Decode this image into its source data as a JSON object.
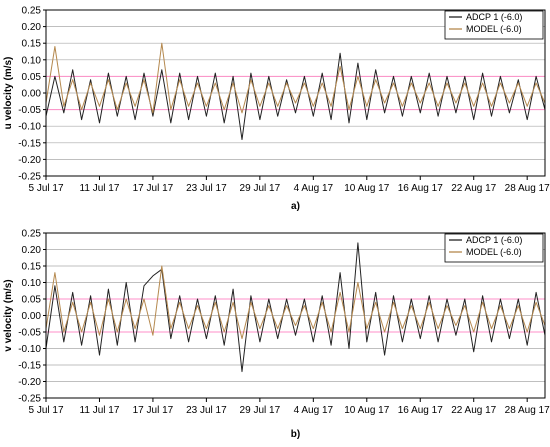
{
  "colors": {
    "adcp": "#222222",
    "model": "#b5894f",
    "grid": "#aaaaaa",
    "pink_band": "#ff8fc8",
    "axis": "#000000"
  },
  "chart_data": [
    {
      "type": "line",
      "panel_label": "a)",
      "ylabel": "u velocity (m/s)",
      "xlabel": "",
      "ylim": [
        -0.25,
        0.25
      ],
      "ytick_step": 0.05,
      "y_ticks": [
        "0.25",
        "0.20",
        "0.15",
        "0.10",
        "0.05",
        "0.00",
        "-0.05",
        "-0.10",
        "-0.15",
        "-0.20",
        "-0.25"
      ],
      "x_range": [
        "2017-07-05",
        "2017-08-30"
      ],
      "x_ticks": [
        "5 Jul 17",
        "11 Jul 17",
        "17 Jul 17",
        "23 Jul 17",
        "29 Jul 17",
        "4 Aug 17",
        "10 Aug 17",
        "16 Aug 17",
        "22 Aug 17",
        "28 Aug 17"
      ],
      "grid": "horizontal",
      "band": [
        -0.05,
        0.05
      ],
      "legend_position": "top-right",
      "legend": [
        "ADCP 1 (-6.0)",
        "MODEL (-6.0)"
      ],
      "series": [
        {
          "name": "ADCP 1 (-6.0)",
          "x": [
            "2017-07-05",
            "2017-07-06",
            "2017-07-07",
            "2017-07-08",
            "2017-07-09",
            "2017-07-10",
            "2017-07-11",
            "2017-07-12",
            "2017-07-13",
            "2017-07-14",
            "2017-07-15",
            "2017-07-16",
            "2017-07-17",
            "2017-07-18",
            "2017-07-19",
            "2017-07-20",
            "2017-07-21",
            "2017-07-22",
            "2017-07-23",
            "2017-07-24",
            "2017-07-25",
            "2017-07-26",
            "2017-07-27",
            "2017-07-28",
            "2017-07-29",
            "2017-07-30",
            "2017-07-31",
            "2017-08-01",
            "2017-08-02",
            "2017-08-03",
            "2017-08-04",
            "2017-08-05",
            "2017-08-06",
            "2017-08-07",
            "2017-08-08",
            "2017-08-09",
            "2017-08-10",
            "2017-08-11",
            "2017-08-12",
            "2017-08-13",
            "2017-08-14",
            "2017-08-15",
            "2017-08-16",
            "2017-08-17",
            "2017-08-18",
            "2017-08-19",
            "2017-08-20",
            "2017-08-21",
            "2017-08-22",
            "2017-08-23",
            "2017-08-24",
            "2017-08-25",
            "2017-08-26",
            "2017-08-27",
            "2017-08-28",
            "2017-08-29",
            "2017-08-30"
          ],
          "values": [
            -0.07,
            0.05,
            -0.06,
            0.07,
            -0.08,
            0.04,
            -0.09,
            0.06,
            -0.07,
            0.05,
            -0.08,
            0.06,
            -0.07,
            0.07,
            -0.09,
            0.06,
            -0.08,
            0.05,
            -0.07,
            0.06,
            -0.09,
            0.05,
            -0.14,
            0.06,
            -0.08,
            0.05,
            -0.07,
            0.04,
            -0.06,
            0.05,
            -0.07,
            0.06,
            -0.08,
            0.12,
            -0.09,
            0.09,
            -0.08,
            0.07,
            -0.06,
            0.05,
            -0.07,
            0.05,
            -0.06,
            0.06,
            -0.07,
            0.05,
            -0.06,
            0.05,
            -0.08,
            0.06,
            -0.07,
            0.05,
            -0.06,
            0.04,
            -0.08,
            0.05,
            -0.05
          ]
        },
        {
          "name": "MODEL (-6.0)",
          "x": [
            "2017-07-05",
            "2017-07-06",
            "2017-07-07",
            "2017-07-08",
            "2017-07-09",
            "2017-07-10",
            "2017-07-11",
            "2017-07-12",
            "2017-07-13",
            "2017-07-14",
            "2017-07-15",
            "2017-07-16",
            "2017-07-17",
            "2017-07-18",
            "2017-07-19",
            "2017-07-20",
            "2017-07-21",
            "2017-07-22",
            "2017-07-23",
            "2017-07-24",
            "2017-07-25",
            "2017-07-26",
            "2017-07-27",
            "2017-07-28",
            "2017-07-29",
            "2017-07-30",
            "2017-07-31",
            "2017-08-01",
            "2017-08-02",
            "2017-08-03",
            "2017-08-04",
            "2017-08-05",
            "2017-08-06",
            "2017-08-07",
            "2017-08-08",
            "2017-08-09",
            "2017-08-10",
            "2017-08-11",
            "2017-08-12",
            "2017-08-13",
            "2017-08-14",
            "2017-08-15",
            "2017-08-16",
            "2017-08-17",
            "2017-08-18",
            "2017-08-19",
            "2017-08-20",
            "2017-08-21",
            "2017-08-22",
            "2017-08-23",
            "2017-08-24",
            "2017-08-25",
            "2017-08-26",
            "2017-08-27",
            "2017-08-28",
            "2017-08-29",
            "2017-08-30"
          ],
          "values": [
            -0.03,
            0.14,
            -0.04,
            0.04,
            -0.05,
            0.03,
            -0.04,
            0.04,
            -0.05,
            0.03,
            -0.04,
            0.04,
            -0.06,
            0.15,
            -0.05,
            0.04,
            -0.04,
            0.03,
            -0.04,
            0.03,
            -0.05,
            0.03,
            -0.06,
            0.04,
            -0.04,
            0.03,
            -0.04,
            0.03,
            -0.03,
            0.03,
            -0.04,
            0.03,
            -0.04,
            0.08,
            -0.05,
            0.05,
            -0.04,
            0.04,
            -0.03,
            0.03,
            -0.04,
            0.03,
            -0.03,
            0.03,
            -0.04,
            0.03,
            -0.03,
            0.03,
            -0.04,
            0.03,
            -0.04,
            0.03,
            -0.03,
            0.03,
            -0.04,
            0.03,
            -0.03
          ]
        }
      ]
    },
    {
      "type": "line",
      "panel_label": "b)",
      "ylabel": "v velocity (m/s)",
      "xlabel": "",
      "ylim": [
        -0.25,
        0.25
      ],
      "ytick_step": 0.05,
      "y_ticks": [
        "0.25",
        "0.20",
        "0.15",
        "0.10",
        "0.05",
        "0.00",
        "-0.05",
        "-0.10",
        "-0.15",
        "-0.20",
        "-0.25"
      ],
      "x_range": [
        "2017-07-05",
        "2017-08-30"
      ],
      "x_ticks": [
        "5 Jul 17",
        "11 Jul 17",
        "17 Jul 17",
        "23 Jul 17",
        "29 Jul 17",
        "4 Aug 17",
        "10 Aug 17",
        "16 Aug 17",
        "22 Aug 17",
        "28 Aug 17"
      ],
      "grid": "horizontal",
      "band": [
        -0.05,
        0.05
      ],
      "legend_position": "top-right",
      "legend": [
        "ADCP 1 (-6.0)",
        "MODEL (-6.0)"
      ],
      "series": [
        {
          "name": "ADCP 1 (-6.0)",
          "x": [
            "2017-07-05",
            "2017-07-06",
            "2017-07-07",
            "2017-07-08",
            "2017-07-09",
            "2017-07-10",
            "2017-07-11",
            "2017-07-12",
            "2017-07-13",
            "2017-07-14",
            "2017-07-15",
            "2017-07-16",
            "2017-07-17",
            "2017-07-18",
            "2017-07-19",
            "2017-07-20",
            "2017-07-21",
            "2017-07-22",
            "2017-07-23",
            "2017-07-24",
            "2017-07-25",
            "2017-07-26",
            "2017-07-27",
            "2017-07-28",
            "2017-07-29",
            "2017-07-30",
            "2017-07-31",
            "2017-08-01",
            "2017-08-02",
            "2017-08-03",
            "2017-08-04",
            "2017-08-05",
            "2017-08-06",
            "2017-08-07",
            "2017-08-08",
            "2017-08-09",
            "2017-08-10",
            "2017-08-11",
            "2017-08-12",
            "2017-08-13",
            "2017-08-14",
            "2017-08-15",
            "2017-08-16",
            "2017-08-17",
            "2017-08-18",
            "2017-08-19",
            "2017-08-20",
            "2017-08-21",
            "2017-08-22",
            "2017-08-23",
            "2017-08-24",
            "2017-08-25",
            "2017-08-26",
            "2017-08-27",
            "2017-08-28",
            "2017-08-29",
            "2017-08-30"
          ],
          "values": [
            -0.1,
            0.09,
            -0.08,
            0.07,
            -0.09,
            0.06,
            -0.12,
            0.08,
            -0.09,
            0.1,
            -0.08,
            0.09,
            0.12,
            0.14,
            -0.07,
            0.06,
            -0.08,
            0.05,
            -0.07,
            0.06,
            -0.09,
            0.08,
            -0.17,
            0.06,
            -0.08,
            0.05,
            -0.07,
            0.05,
            -0.06,
            0.05,
            -0.08,
            0.06,
            -0.09,
            0.13,
            -0.1,
            0.22,
            -0.08,
            0.07,
            -0.12,
            0.06,
            -0.08,
            0.05,
            -0.07,
            0.06,
            -0.08,
            0.05,
            -0.06,
            0.05,
            -0.11,
            0.06,
            -0.08,
            0.05,
            -0.07,
            0.05,
            -0.09,
            0.07,
            -0.06
          ]
        },
        {
          "name": "MODEL (-6.0)",
          "x": [
            "2017-07-05",
            "2017-07-06",
            "2017-07-07",
            "2017-07-08",
            "2017-07-09",
            "2017-07-10",
            "2017-07-11",
            "2017-07-12",
            "2017-07-13",
            "2017-07-14",
            "2017-07-15",
            "2017-07-16",
            "2017-07-17",
            "2017-07-18",
            "2017-07-19",
            "2017-07-20",
            "2017-07-21",
            "2017-07-22",
            "2017-07-23",
            "2017-07-24",
            "2017-07-25",
            "2017-07-26",
            "2017-07-27",
            "2017-07-28",
            "2017-07-29",
            "2017-07-30",
            "2017-07-31",
            "2017-08-01",
            "2017-08-02",
            "2017-08-03",
            "2017-08-04",
            "2017-08-05",
            "2017-08-06",
            "2017-08-07",
            "2017-08-08",
            "2017-08-09",
            "2017-08-10",
            "2017-08-11",
            "2017-08-12",
            "2017-08-13",
            "2017-08-14",
            "2017-08-15",
            "2017-08-16",
            "2017-08-17",
            "2017-08-18",
            "2017-08-19",
            "2017-08-20",
            "2017-08-21",
            "2017-08-22",
            "2017-08-23",
            "2017-08-24",
            "2017-08-25",
            "2017-08-26",
            "2017-08-27",
            "2017-08-28",
            "2017-08-29",
            "2017-08-30"
          ],
          "values": [
            -0.04,
            0.13,
            -0.05,
            0.04,
            -0.05,
            0.04,
            -0.06,
            0.05,
            -0.05,
            0.05,
            -0.04,
            0.05,
            -0.06,
            0.15,
            -0.04,
            0.04,
            -0.04,
            0.03,
            -0.04,
            0.04,
            -0.05,
            0.04,
            -0.07,
            0.04,
            -0.04,
            0.03,
            -0.04,
            0.03,
            -0.03,
            0.03,
            -0.04,
            0.04,
            -0.05,
            0.07,
            -0.05,
            0.1,
            -0.04,
            0.04,
            -0.05,
            0.04,
            -0.04,
            0.03,
            -0.04,
            0.04,
            -0.04,
            0.03,
            -0.03,
            0.03,
            -0.05,
            0.04,
            -0.04,
            0.03,
            -0.04,
            0.03,
            -0.05,
            0.04,
            -0.03
          ]
        }
      ]
    }
  ]
}
